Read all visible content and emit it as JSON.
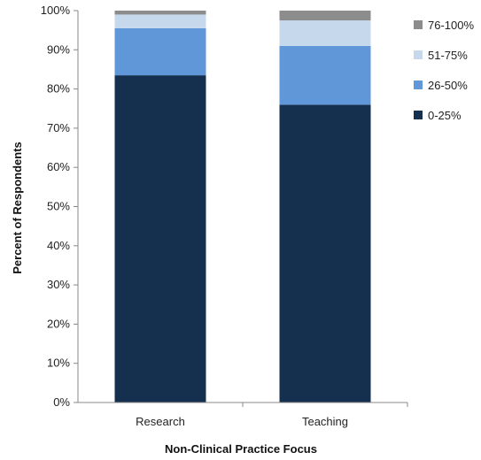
{
  "chart_data": {
    "type": "bar",
    "stacked": true,
    "title": "",
    "xlabel": "Non-Clinical Practice Focus",
    "ylabel": "Percent of Respondents",
    "categories": [
      "Research",
      "Teaching"
    ],
    "ylim": [
      0,
      100
    ],
    "yticks": [
      "0%",
      "10%",
      "20%",
      "30%",
      "40%",
      "50%",
      "60%",
      "70%",
      "80%",
      "90%",
      "100%"
    ],
    "grid": false,
    "legend_position": "right",
    "series": [
      {
        "name": "0-25%",
        "values": [
          83.5,
          76.0
        ],
        "color": "#15304f"
      },
      {
        "name": "26-50%",
        "values": [
          12.0,
          15.0
        ],
        "color": "#5f97d8"
      },
      {
        "name": "51-75%",
        "values": [
          3.5,
          6.5
        ],
        "color": "#c6d8ec"
      },
      {
        "name": "76-100%",
        "values": [
          1.0,
          2.5
        ],
        "color": "#8c8c8c"
      }
    ]
  }
}
